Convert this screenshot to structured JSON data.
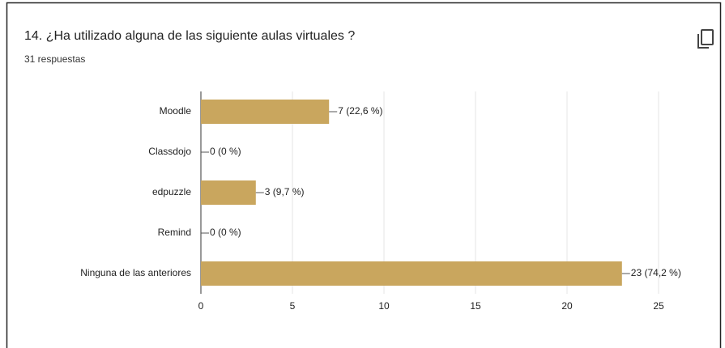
{
  "chart_data": {
    "type": "hbar",
    "title": "14. ¿Ha utilizado alguna de las siguiente aulas virtuales ?",
    "subtitle": "31 respuestas",
    "categories": [
      "Moodle",
      "Classdojo",
      "edpuzzle",
      "Remind",
      "Ninguna de las anteriores"
    ],
    "values": [
      7,
      0,
      3,
      0,
      23
    ],
    "value_labels": [
      "7 (22,6 %)",
      "0 (0 %)",
      "3 (9,7 %)",
      "0 (0 %)",
      "23 (74,2 %)"
    ],
    "color": "#c9a65e",
    "xlim": [
      0,
      25
    ],
    "xticks": [
      0,
      5,
      10,
      15,
      20,
      25
    ],
    "grid": true
  }
}
